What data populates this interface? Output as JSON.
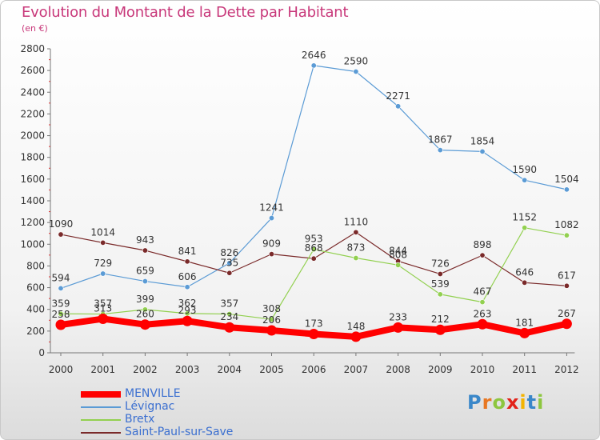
{
  "title": "Evolution du Montant de la Dette par Habitant",
  "unit": "(en €)",
  "logo": "Proxiti",
  "chart_data": {
    "type": "line",
    "title": "Evolution du Montant de la Dette par Habitant",
    "subtitle": "(en €)",
    "xlabel": "",
    "ylabel": "",
    "x": [
      "2000",
      "2001",
      "2002",
      "2003",
      "2004",
      "2005",
      "2006",
      "2007",
      "2008",
      "2009",
      "2010",
      "2011",
      "2012"
    ],
    "ylim": [
      0,
      2800
    ],
    "yticks": [
      0,
      200,
      400,
      600,
      800,
      1000,
      1200,
      1400,
      1600,
      1800,
      2000,
      2200,
      2400,
      2600,
      2800
    ],
    "grid": false,
    "legend_position": "bottom-left",
    "series": [
      {
        "name": "MENVILLE",
        "color": "#ff0000",
        "values": [
          258,
          313,
          260,
          293,
          234,
          206,
          173,
          148,
          233,
          212,
          263,
          181,
          267
        ]
      },
      {
        "name": "Lévignac",
        "color": "#5b9bd5",
        "values": [
          594,
          729,
          659,
          606,
          826,
          1241,
          2646,
          2590,
          2271,
          1867,
          1854,
          1590,
          1504
        ]
      },
      {
        "name": "Bretx",
        "color": "#92d050",
        "values": [
          359,
          357,
          399,
          362,
          357,
          308,
          953,
          873,
          808,
          539,
          467,
          1152,
          1082
        ]
      },
      {
        "name": "Saint-Paul-sur-Save",
        "color": "#7a2a2a",
        "values": [
          1090,
          1014,
          943,
          841,
          735,
          909,
          868,
          1110,
          844,
          726,
          898,
          646,
          617
        ]
      }
    ]
  }
}
